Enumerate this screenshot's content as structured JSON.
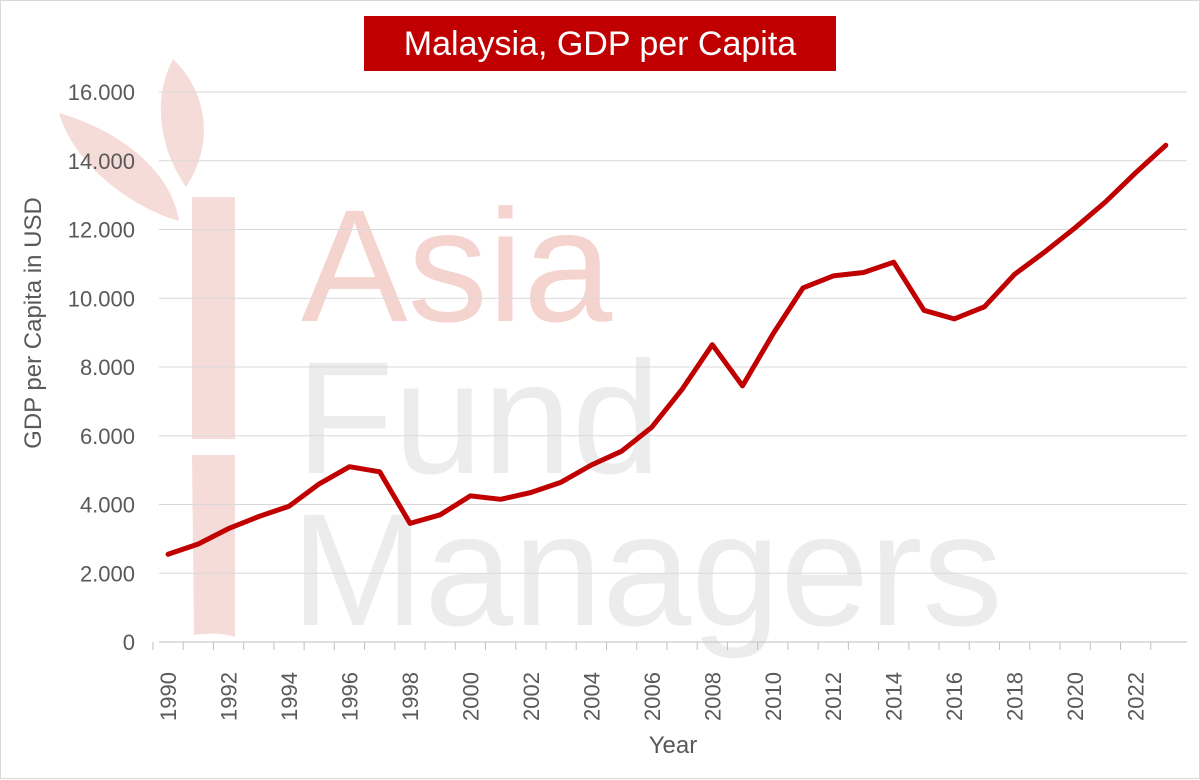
{
  "chart_data": {
    "type": "line",
    "title": "Malaysia, GDP per Capita",
    "xlabel": "Year",
    "ylabel": "GDP per Capita in USD",
    "ylim": [
      0,
      16000
    ],
    "yticks": [
      "0",
      "2.000",
      "4.000",
      "6.000",
      "8.000",
      "10.000",
      "12.000",
      "14.000",
      "16.000"
    ],
    "xticks": [
      "1990",
      "1992",
      "1994",
      "1996",
      "1998",
      "2000",
      "2002",
      "2004",
      "2006",
      "2008",
      "2010",
      "2012",
      "2014",
      "2016",
      "2018",
      "2020",
      "2022"
    ],
    "grid": "horizontal",
    "legend": "none",
    "series": [
      {
        "color": "#c00000",
        "x": [
          1990,
          1991,
          1992,
          1993,
          1994,
          1995,
          1996,
          1997,
          1998,
          1999,
          2000,
          2001,
          2002,
          2003,
          2004,
          2005,
          2006,
          2007,
          2008,
          2009,
          2010,
          2011,
          2012,
          2013,
          2014,
          2015,
          2016,
          2017,
          2018,
          2019,
          2020,
          2021,
          2022,
          2023
        ],
        "values": [
          2550,
          2850,
          3300,
          3650,
          3950,
          4600,
          5100,
          4950,
          3450,
          3700,
          4250,
          4150,
          4350,
          4650,
          5150,
          5550,
          6250,
          7350,
          8650,
          7450,
          8950,
          10300,
          10650,
          10750,
          11050,
          9650,
          9400,
          9750,
          10700,
          11350,
          12050,
          12800,
          13650,
          14450
        ]
      }
    ]
  },
  "watermark": {
    "line1": "Asia",
    "line2": "Fund",
    "line3": "Managers",
    "colors": {
      "asia": "#f4d0cc",
      "fund": "#e8e8e8",
      "logo": "#f4d0cc"
    }
  },
  "colors": {
    "title_bg": "#c00000",
    "title_fg": "#ffffff",
    "grid": "#d9d9d9",
    "axis": "#bfbfbf"
  }
}
